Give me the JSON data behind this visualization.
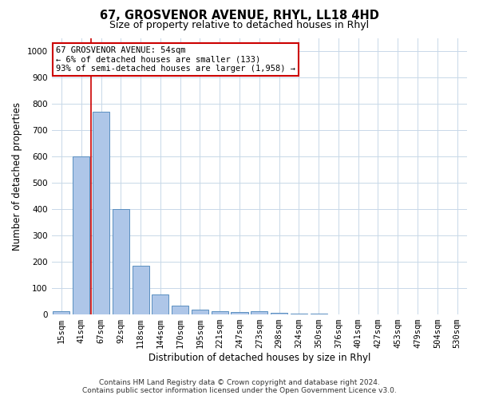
{
  "title": "67, GROSVENOR AVENUE, RHYL, LL18 4HD",
  "subtitle": "Size of property relative to detached houses in Rhyl",
  "xlabel": "Distribution of detached houses by size in Rhyl",
  "ylabel": "Number of detached properties",
  "categories": [
    "15sqm",
    "41sqm",
    "67sqm",
    "92sqm",
    "118sqm",
    "144sqm",
    "170sqm",
    "195sqm",
    "221sqm",
    "247sqm",
    "273sqm",
    "298sqm",
    "324sqm",
    "350sqm",
    "376sqm",
    "401sqm",
    "427sqm",
    "453sqm",
    "479sqm",
    "504sqm",
    "530sqm"
  ],
  "values": [
    13,
    600,
    770,
    400,
    185,
    75,
    35,
    18,
    12,
    10,
    13,
    6,
    3,
    2,
    1,
    1,
    0,
    0,
    0,
    0,
    0
  ],
  "bar_color": "#aec6e8",
  "bar_edge_color": "#5a8fc0",
  "property_line_x": 1.5,
  "annotation_text": "67 GROSVENOR AVENUE: 54sqm\n← 6% of detached houses are smaller (133)\n93% of semi-detached houses are larger (1,958) →",
  "annotation_box_color": "#ffffff",
  "annotation_box_edge_color": "#cc0000",
  "footnote1": "Contains HM Land Registry data © Crown copyright and database right 2024.",
  "footnote2": "Contains public sector information licensed under the Open Government Licence v3.0.",
  "ylim": [
    0,
    1050
  ],
  "yticks": [
    0,
    100,
    200,
    300,
    400,
    500,
    600,
    700,
    800,
    900,
    1000
  ],
  "background_color": "#ffffff",
  "grid_color": "#c8d8e8",
  "title_fontsize": 10.5,
  "subtitle_fontsize": 9,
  "tick_fontsize": 7.5,
  "label_fontsize": 8.5,
  "footnote_fontsize": 6.5
}
